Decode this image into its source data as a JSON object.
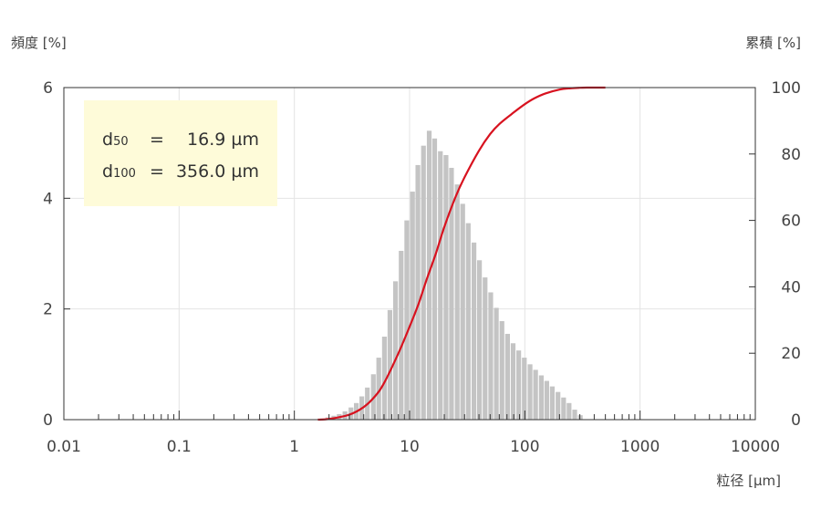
{
  "chart_data": {
    "type": "bar",
    "x_scale": "log",
    "xlabel": "粒径 [µm]",
    "ylabel_left": "頻度 [%]",
    "ylabel_right": "累積 [%]",
    "xlim": [
      0.01,
      10000
    ],
    "ylim_left": [
      0,
      6
    ],
    "ylim_right": [
      0,
      100
    ],
    "x_ticks": [
      "0.01",
      "0.1",
      "1",
      "10",
      "100",
      "1000",
      "10000"
    ],
    "y_left_ticks": [
      "0",
      "2",
      "4",
      "6"
    ],
    "y_right_ticks": [
      "0",
      "20",
      "40",
      "60",
      "80",
      "100"
    ],
    "grid": true,
    "annotation": {
      "lines": [
        {
          "label": "d",
          "sub": "50",
          "eq": "=",
          "value": "16.9 µm"
        },
        {
          "label": "d",
          "sub": "100",
          "eq": "=",
          "value": "356.0 µm"
        }
      ],
      "placement": "top-left"
    },
    "series": [
      {
        "kind": "bar",
        "axis": "left",
        "color": "#c4c4c4",
        "x": [
          1.75,
          1.95,
          2.2,
          2.45,
          2.75,
          3.1,
          3.45,
          3.85,
          4.3,
          4.85,
          5.4,
          6.05,
          6.75,
          7.55,
          8.45,
          9.45,
          10.6,
          11.8,
          13.2,
          14.8,
          16.5,
          18.5,
          20.7,
          23.1,
          25.9,
          28.9,
          32.3,
          36.2,
          40.4,
          45.2,
          50.6,
          56.6,
          63.3,
          70.8,
          79.1,
          88.5,
          99,
          111,
          124,
          139,
          155,
          173,
          194,
          217,
          242,
          271,
          303
        ],
        "values": [
          0.02,
          0.04,
          0.07,
          0.1,
          0.15,
          0.22,
          0.3,
          0.42,
          0.58,
          0.82,
          1.12,
          1.5,
          1.98,
          2.5,
          3.05,
          3.6,
          4.12,
          4.6,
          4.95,
          5.22,
          5.08,
          4.85,
          4.78,
          4.55,
          4.25,
          3.9,
          3.55,
          3.2,
          2.88,
          2.57,
          2.3,
          2.02,
          1.78,
          1.55,
          1.38,
          1.25,
          1.12,
          1.0,
          0.9,
          0.8,
          0.7,
          0.6,
          0.5,
          0.4,
          0.3,
          0.18,
          0.08
        ]
      },
      {
        "kind": "line",
        "axis": "right",
        "color": "#d8121f",
        "x": [
          1.6,
          2,
          3,
          4,
          5,
          6,
          8,
          10,
          12,
          14,
          16.9,
          20,
          25,
          30,
          40,
          50,
          60,
          80,
          100,
          120,
          150,
          200,
          250,
          300,
          356
        ],
        "values": [
          0,
          0.2,
          1.5,
          3.8,
          7,
          11,
          20,
          28,
          35,
          42,
          50,
          58,
          67,
          73,
          81,
          86,
          89,
          92.5,
          95,
          96.7,
          98.2,
          99.4,
          99.8,
          99.95,
          100
        ]
      }
    ]
  }
}
